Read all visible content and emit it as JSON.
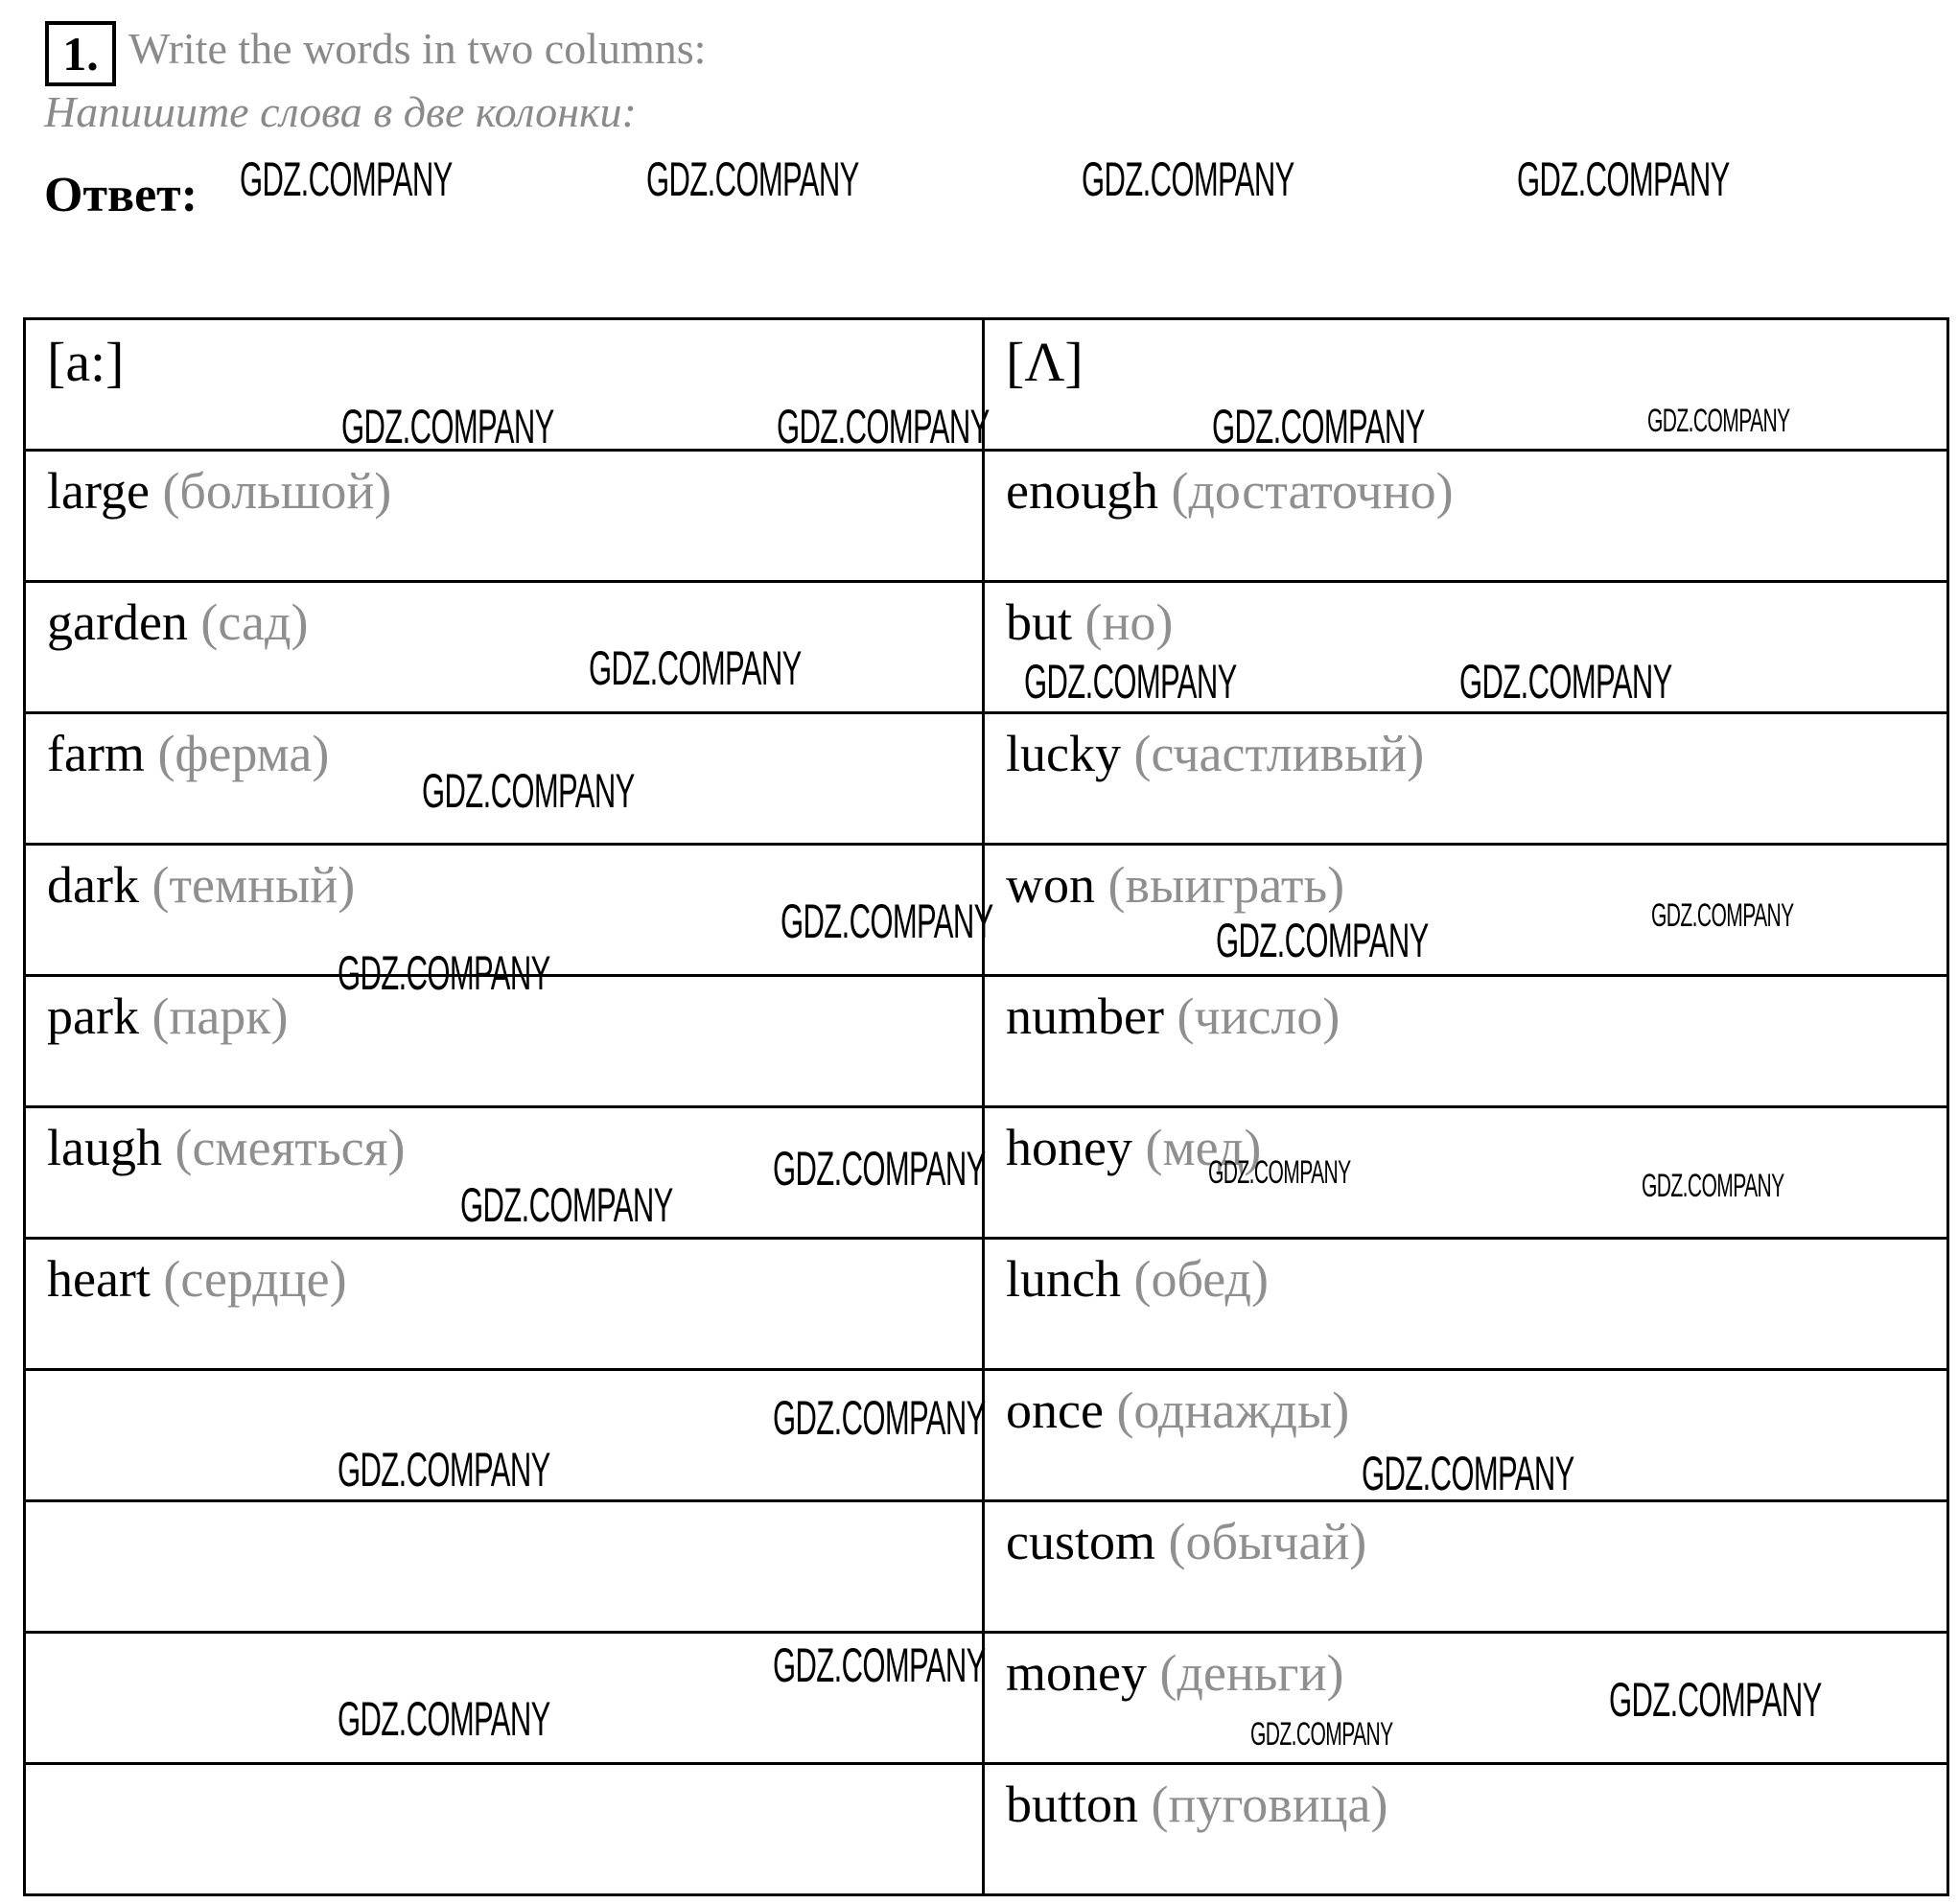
{
  "exercise": {
    "number": "1.",
    "title_en": "Write the words in two columns:",
    "title_ru": "Напишите слова в две колонки:",
    "answer_label": "Ответ:"
  },
  "table": {
    "headers": [
      "[a:]",
      "[Λ]"
    ],
    "rows": [
      {
        "left": {
          "word": "large",
          "tr": "(большой)"
        },
        "right": {
          "word": "enough",
          "tr": "(достаточно)"
        }
      },
      {
        "left": {
          "word": "garden",
          "tr": "(сад)"
        },
        "right": {
          "word": "but",
          "tr": "(но)"
        }
      },
      {
        "left": {
          "word": "farm",
          "tr": "(ферма)"
        },
        "right": {
          "word": "lucky",
          "tr": "(счастливый)"
        }
      },
      {
        "left": {
          "word": "dark",
          "tr": "(темный)"
        },
        "right": {
          "word": "won",
          "tr": "(выиграть)"
        }
      },
      {
        "left": {
          "word": "park",
          "tr": "(парк)"
        },
        "right": {
          "word": "number",
          "tr": "(число)"
        }
      },
      {
        "left": {
          "word": "laugh",
          "tr": "(смеяться)"
        },
        "right": {
          "word": "honey",
          "tr": "(мед)"
        }
      },
      {
        "left": {
          "word": "heart",
          "tr": "(сердце)"
        },
        "right": {
          "word": "lunch",
          "tr": "(обед)"
        }
      },
      {
        "left": {
          "word": "",
          "tr": ""
        },
        "right": {
          "word": "once",
          "tr": "(однажды)"
        }
      },
      {
        "left": {
          "word": "",
          "tr": ""
        },
        "right": {
          "word": "custom",
          "tr": "(обычай)"
        }
      },
      {
        "left": {
          "word": "",
          "tr": ""
        },
        "right": {
          "word": "money",
          "tr": "(деньги)"
        }
      },
      {
        "left": {
          "word": "",
          "tr": ""
        },
        "right": {
          "word": "button",
          "tr": "(пуговица)"
        }
      }
    ]
  },
  "watermark": "GDZ.COMPANY",
  "colors": {
    "text": "#000000",
    "translation": "#8f8f8f",
    "instruction": "#8a8a8a"
  }
}
